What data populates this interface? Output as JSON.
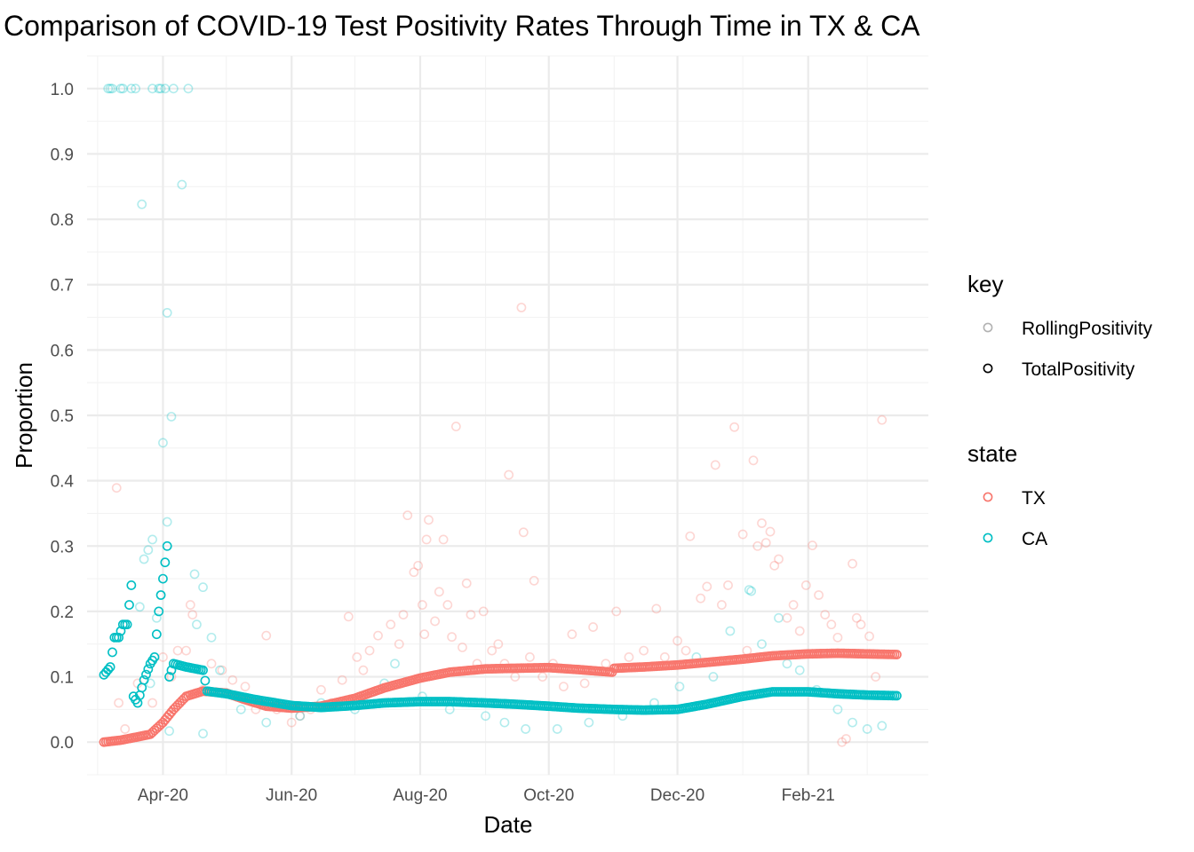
{
  "chart_data": {
    "type": "scatter",
    "title": "Comparison of COVID-19 Test Positivity Rates Through Time in TX & CA",
    "xlabel": "Date",
    "ylabel": "Proportion",
    "x_range": [
      "2020-02-25",
      "2021-03-30"
    ],
    "ylim": [
      -0.05,
      1.05
    ],
    "x_ticks": [
      {
        "date": "2020-04-01",
        "label": "Apr-20"
      },
      {
        "date": "2020-06-01",
        "label": "Jun-20"
      },
      {
        "date": "2020-08-01",
        "label": "Aug-20"
      },
      {
        "date": "2020-10-01",
        "label": "Oct-20"
      },
      {
        "date": "2020-12-01",
        "label": "Dec-20"
      },
      {
        "date": "2021-02-01",
        "label": "Feb-21"
      }
    ],
    "x_minor_ticks": [
      "2020-03-01",
      "2020-05-01",
      "2020-07-01",
      "2020-09-01",
      "2020-11-01",
      "2021-01-01",
      "2021-03-01"
    ],
    "y_ticks": [
      0.0,
      0.1,
      0.2,
      0.3,
      0.4,
      0.5,
      0.6,
      0.7,
      0.8,
      0.9,
      1.0
    ],
    "y_tick_labels": [
      "0.0",
      "0.1",
      "0.2",
      "0.3",
      "0.4",
      "0.5",
      "0.6",
      "0.7",
      "0.8",
      "0.9",
      "1.0"
    ],
    "grid": true,
    "legend_position": "right",
    "legends": [
      {
        "title": "key",
        "items": [
          {
            "label": "RollingPositivity",
            "color": "#000000",
            "opacity": 0.3
          },
          {
            "label": "TotalPositivity",
            "color": "#000000",
            "opacity": 1.0
          }
        ]
      },
      {
        "title": "state",
        "items": [
          {
            "label": "TX",
            "color": "#F8766D"
          },
          {
            "label": "CA",
            "color": "#00BFC4"
          }
        ]
      }
    ],
    "series": [
      {
        "state": "TX",
        "key": "TotalPositivity",
        "color": "#F8766D",
        "opacity": 1.0,
        "anchors": [
          [
            "2020-03-04",
            0.0
          ],
          [
            "2020-03-12",
            0.003
          ],
          [
            "2020-03-20",
            0.008
          ],
          [
            "2020-03-26",
            0.012
          ],
          [
            "2020-04-01",
            0.03
          ],
          [
            "2020-04-06",
            0.05
          ],
          [
            "2020-04-12",
            0.07
          ],
          [
            "2020-04-20",
            0.078
          ],
          [
            "2020-05-01",
            0.075
          ],
          [
            "2020-05-10",
            0.065
          ],
          [
            "2020-05-20",
            0.055
          ],
          [
            "2020-06-01",
            0.052
          ],
          [
            "2020-06-15",
            0.055
          ],
          [
            "2020-07-01",
            0.067
          ],
          [
            "2020-07-15",
            0.083
          ],
          [
            "2020-08-01",
            0.098
          ],
          [
            "2020-08-15",
            0.107
          ],
          [
            "2020-09-01",
            0.112
          ],
          [
            "2020-09-15",
            0.113
          ],
          [
            "2020-10-01",
            0.114
          ],
          [
            "2020-10-15",
            0.111
          ],
          [
            "2020-10-31",
            0.107
          ],
          [
            "2020-11-01",
            0.113
          ],
          [
            "2020-11-15",
            0.115
          ],
          [
            "2020-12-01",
            0.118
          ],
          [
            "2020-12-15",
            0.122
          ],
          [
            "2021-01-01",
            0.127
          ],
          [
            "2021-01-15",
            0.132
          ],
          [
            "2021-02-01",
            0.135
          ],
          [
            "2021-02-15",
            0.136
          ],
          [
            "2021-03-01",
            0.135
          ],
          [
            "2021-03-15",
            0.134
          ]
        ]
      },
      {
        "state": "CA",
        "key": "TotalPositivity",
        "color": "#00BFC4",
        "opacity": 1.0,
        "anchors": [
          [
            "2020-03-04",
            0.103
          ],
          [
            "2020-03-07",
            0.115
          ],
          [
            "2020-03-09",
            0.16
          ],
          [
            "2020-03-11",
            0.16
          ],
          [
            "2020-03-13",
            0.18
          ],
          [
            "2020-03-15",
            0.18
          ],
          [
            "2020-03-17",
            0.24
          ],
          [
            "2020-03-18",
            0.07
          ],
          [
            "2020-03-20",
            0.06
          ],
          [
            "2020-03-23",
            0.095
          ],
          [
            "2020-03-26",
            0.12
          ],
          [
            "2020-03-28",
            0.13
          ],
          [
            "2020-03-30",
            0.2
          ],
          [
            "2020-04-01",
            0.25
          ],
          [
            "2020-04-03",
            0.3
          ],
          [
            "2020-04-04",
            0.1
          ],
          [
            "2020-04-06",
            0.12
          ],
          [
            "2020-04-12",
            0.115
          ],
          [
            "2020-04-20",
            0.11
          ],
          [
            "2020-04-22",
            0.078
          ],
          [
            "2020-05-01",
            0.074
          ],
          [
            "2020-05-15",
            0.065
          ],
          [
            "2020-06-01",
            0.056
          ],
          [
            "2020-06-15",
            0.053
          ],
          [
            "2020-07-01",
            0.056
          ],
          [
            "2020-07-15",
            0.06
          ],
          [
            "2020-08-01",
            0.062
          ],
          [
            "2020-08-15",
            0.062
          ],
          [
            "2020-09-01",
            0.06
          ],
          [
            "2020-09-15",
            0.058
          ],
          [
            "2020-10-01",
            0.055
          ],
          [
            "2020-10-15",
            0.052
          ],
          [
            "2020-11-01",
            0.05
          ],
          [
            "2020-11-15",
            0.049
          ],
          [
            "2020-12-01",
            0.05
          ],
          [
            "2020-12-15",
            0.058
          ],
          [
            "2021-01-01",
            0.07
          ],
          [
            "2021-01-15",
            0.077
          ],
          [
            "2021-02-01",
            0.077
          ],
          [
            "2021-02-15",
            0.074
          ],
          [
            "2021-03-01",
            0.072
          ],
          [
            "2021-03-15",
            0.071
          ]
        ]
      },
      {
        "state": "TX",
        "key": "RollingPositivity",
        "color": "#F8766D",
        "opacity": 0.3,
        "points": [
          [
            "2020-03-10",
            0.389
          ],
          [
            "2020-03-11",
            0.06
          ],
          [
            "2020-03-14",
            0.02
          ],
          [
            "2020-03-20",
            0.09
          ],
          [
            "2020-03-27",
            0.06
          ],
          [
            "2020-04-01",
            0.13
          ],
          [
            "2020-04-05",
            0.1
          ],
          [
            "2020-04-08",
            0.14
          ],
          [
            "2020-04-12",
            0.14
          ],
          [
            "2020-04-14",
            0.21
          ],
          [
            "2020-04-15",
            0.195
          ],
          [
            "2020-04-20",
            0.08
          ],
          [
            "2020-04-24",
            0.12
          ],
          [
            "2020-04-29",
            0.11
          ],
          [
            "2020-05-04",
            0.095
          ],
          [
            "2020-05-10",
            0.085
          ],
          [
            "2020-05-15",
            0.05
          ],
          [
            "2020-05-20",
            0.163
          ],
          [
            "2020-05-25",
            0.05
          ],
          [
            "2020-06-01",
            0.03
          ],
          [
            "2020-06-05",
            0.04
          ],
          [
            "2020-06-10",
            0.05
          ],
          [
            "2020-06-15",
            0.08
          ],
          [
            "2020-06-20",
            0.06
          ],
          [
            "2020-06-25",
            0.095
          ],
          [
            "2020-06-28",
            0.192
          ],
          [
            "2020-07-02",
            0.13
          ],
          [
            "2020-07-05",
            0.11
          ],
          [
            "2020-07-08",
            0.14
          ],
          [
            "2020-07-12",
            0.163
          ],
          [
            "2020-07-18",
            0.18
          ],
          [
            "2020-07-22",
            0.15
          ],
          [
            "2020-07-24",
            0.195
          ],
          [
            "2020-07-26",
            0.347
          ],
          [
            "2020-07-29",
            0.26
          ],
          [
            "2020-07-31",
            0.27
          ],
          [
            "2020-08-02",
            0.21
          ],
          [
            "2020-08-03",
            0.165
          ],
          [
            "2020-08-04",
            0.31
          ],
          [
            "2020-08-05",
            0.34
          ],
          [
            "2020-08-08",
            0.185
          ],
          [
            "2020-08-10",
            0.23
          ],
          [
            "2020-08-12",
            0.31
          ],
          [
            "2020-08-14",
            0.21
          ],
          [
            "2020-08-16",
            0.161
          ],
          [
            "2020-08-18",
            0.483
          ],
          [
            "2020-08-21",
            0.145
          ],
          [
            "2020-08-23",
            0.243
          ],
          [
            "2020-08-25",
            0.195
          ],
          [
            "2020-08-28",
            0.12
          ],
          [
            "2020-08-31",
            0.2
          ],
          [
            "2020-09-04",
            0.14
          ],
          [
            "2020-09-07",
            0.15
          ],
          [
            "2020-09-10",
            0.12
          ],
          [
            "2020-09-12",
            0.409
          ],
          [
            "2020-09-15",
            0.1
          ],
          [
            "2020-09-18",
            0.665
          ],
          [
            "2020-09-19",
            0.321
          ],
          [
            "2020-09-22",
            0.13
          ],
          [
            "2020-09-24",
            0.247
          ],
          [
            "2020-09-28",
            0.1
          ],
          [
            "2020-10-03",
            0.12
          ],
          [
            "2020-10-08",
            0.085
          ],
          [
            "2020-10-12",
            0.165
          ],
          [
            "2020-10-18",
            0.09
          ],
          [
            "2020-10-22",
            0.176
          ],
          [
            "2020-10-28",
            0.12
          ],
          [
            "2020-11-02",
            0.2
          ],
          [
            "2020-11-08",
            0.13
          ],
          [
            "2020-11-15",
            0.14
          ],
          [
            "2020-11-21",
            0.204
          ],
          [
            "2020-11-25",
            0.13
          ],
          [
            "2020-12-01",
            0.155
          ],
          [
            "2020-12-05",
            0.14
          ],
          [
            "2020-12-07",
            0.315
          ],
          [
            "2020-12-12",
            0.22
          ],
          [
            "2020-12-15",
            0.238
          ],
          [
            "2020-12-19",
            0.424
          ],
          [
            "2020-12-22",
            0.21
          ],
          [
            "2020-12-25",
            0.24
          ],
          [
            "2020-12-28",
            0.482
          ],
          [
            "2021-01-01",
            0.318
          ],
          [
            "2021-01-03",
            0.14
          ],
          [
            "2021-01-06",
            0.431
          ],
          [
            "2021-01-08",
            0.3
          ],
          [
            "2021-01-10",
            0.335
          ],
          [
            "2021-01-12",
            0.305
          ],
          [
            "2021-01-14",
            0.322
          ],
          [
            "2021-01-16",
            0.27
          ],
          [
            "2021-01-18",
            0.28
          ],
          [
            "2021-01-22",
            0.19
          ],
          [
            "2021-01-25",
            0.21
          ],
          [
            "2021-01-28",
            0.17
          ],
          [
            "2021-01-31",
            0.24
          ],
          [
            "2021-02-03",
            0.301
          ],
          [
            "2021-02-06",
            0.225
          ],
          [
            "2021-02-09",
            0.195
          ],
          [
            "2021-02-12",
            0.18
          ],
          [
            "2021-02-15",
            0.16
          ],
          [
            "2021-02-17",
            0.0
          ],
          [
            "2021-02-19",
            0.005
          ],
          [
            "2021-02-22",
            0.273
          ],
          [
            "2021-02-24",
            0.19
          ],
          [
            "2021-02-26",
            0.18
          ],
          [
            "2021-03-02",
            0.162
          ],
          [
            "2021-03-05",
            0.1
          ],
          [
            "2021-03-08",
            0.493
          ]
        ]
      },
      {
        "state": "CA",
        "key": "RollingPositivity",
        "color": "#00BFC4",
        "opacity": 0.3,
        "points": [
          [
            "2020-03-06",
            1.0
          ],
          [
            "2020-03-07",
            1.0
          ],
          [
            "2020-03-08",
            1.0
          ],
          [
            "2020-03-12",
            1.0
          ],
          [
            "2020-03-13",
            1.0
          ],
          [
            "2020-03-17",
            1.0
          ],
          [
            "2020-03-19",
            1.0
          ],
          [
            "2020-03-27",
            1.0
          ],
          [
            "2020-03-30",
            1.0
          ],
          [
            "2020-03-31",
            1.0
          ],
          [
            "2020-04-02",
            1.0
          ],
          [
            "2020-04-06",
            1.0
          ],
          [
            "2020-04-13",
            1.0
          ],
          [
            "2020-04-10",
            0.853
          ],
          [
            "2020-03-22",
            0.823
          ],
          [
            "2020-04-03",
            0.657
          ],
          [
            "2020-04-05",
            0.498
          ],
          [
            "2020-04-01",
            0.458
          ],
          [
            "2020-04-03",
            0.337
          ],
          [
            "2020-03-25",
            0.294
          ],
          [
            "2020-03-27",
            0.31
          ],
          [
            "2020-03-23",
            0.28
          ],
          [
            "2020-03-29",
            0.19
          ],
          [
            "2020-03-21",
            0.207
          ],
          [
            "2020-03-26",
            0.09
          ],
          [
            "2020-04-16",
            0.257
          ],
          [
            "2020-04-20",
            0.237
          ],
          [
            "2020-04-24",
            0.16
          ],
          [
            "2020-04-17",
            0.18
          ],
          [
            "2020-04-04",
            0.017
          ],
          [
            "2020-04-20",
            0.013
          ],
          [
            "2020-04-28",
            0.11
          ],
          [
            "2020-05-08",
            0.05
          ],
          [
            "2020-05-20",
            0.03
          ],
          [
            "2020-06-05",
            0.04
          ],
          [
            "2020-06-15",
            0.06
          ],
          [
            "2020-07-01",
            0.05
          ],
          [
            "2020-07-15",
            0.09
          ],
          [
            "2020-07-20",
            0.12
          ],
          [
            "2020-08-02",
            0.07
          ],
          [
            "2020-08-15",
            0.05
          ],
          [
            "2020-09-01",
            0.04
          ],
          [
            "2020-09-10",
            0.03
          ],
          [
            "2020-09-20",
            0.02
          ],
          [
            "2020-10-05",
            0.02
          ],
          [
            "2020-10-20",
            0.03
          ],
          [
            "2020-11-05",
            0.04
          ],
          [
            "2020-11-20",
            0.06
          ],
          [
            "2020-12-02",
            0.085
          ],
          [
            "2020-12-10",
            0.13
          ],
          [
            "2020-12-18",
            0.1
          ],
          [
            "2020-12-26",
            0.17
          ],
          [
            "2021-01-04",
            0.233
          ],
          [
            "2021-01-05",
            0.231
          ],
          [
            "2021-01-10",
            0.15
          ],
          [
            "2021-01-18",
            0.19
          ],
          [
            "2021-01-22",
            0.12
          ],
          [
            "2021-01-28",
            0.11
          ],
          [
            "2021-02-05",
            0.08
          ],
          [
            "2021-02-15",
            0.05
          ],
          [
            "2021-02-22",
            0.03
          ],
          [
            "2021-03-01",
            0.02
          ],
          [
            "2021-03-08",
            0.025
          ]
        ]
      }
    ]
  }
}
